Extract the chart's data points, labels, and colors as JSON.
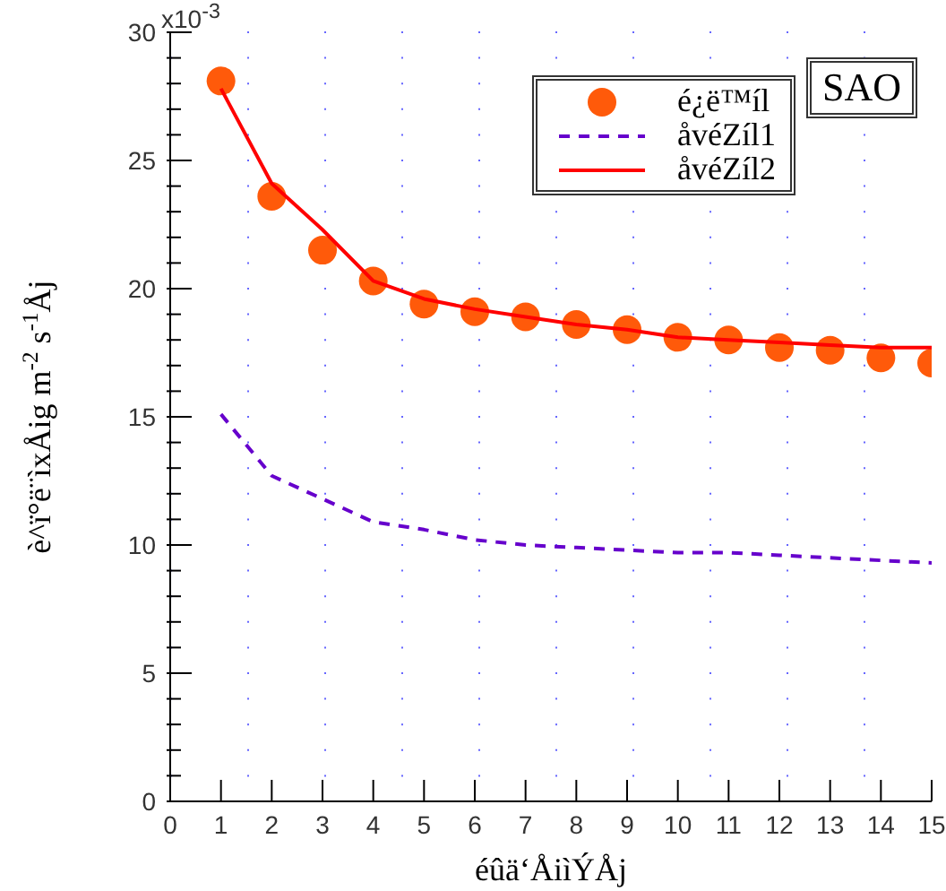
{
  "chart_data": {
    "type": "line",
    "xlabel": "éûä‘ÅiìÝÅj",
    "ylabel": "è^ï°ë¨ìxÅig m$^{-2}$ s$^{-1}$Åj",
    "annotations": [
      "x10$^{-3}$",
      "SAO"
    ],
    "x": [
      1,
      2,
      3,
      4,
      5,
      6,
      7,
      8,
      9,
      10,
      11,
      12,
      13,
      14,
      15
    ],
    "series": [
      {
        "name": "é¿ë™íl",
        "type": "scatter",
        "color": "#ff5a0a",
        "marker": "circle",
        "values": [
          28.1,
          23.6,
          21.5,
          20.3,
          19.4,
          19.1,
          18.9,
          18.6,
          18.4,
          18.1,
          18.0,
          17.7,
          17.6,
          17.3,
          17.1
        ]
      },
      {
        "name": "åvéZíl1",
        "type": "line",
        "color": "#6600cc",
        "line_style": "dashed",
        "marker": "none",
        "values": [
          15.1,
          12.7,
          11.8,
          10.9,
          10.6,
          10.2,
          10.0,
          9.9,
          9.8,
          9.7,
          9.7,
          9.6,
          9.5,
          9.4,
          9.3
        ]
      },
      {
        "name": "åvéZíl2",
        "type": "line",
        "color": "#ff0000",
        "line_style": "solid",
        "marker": "none",
        "values": [
          27.8,
          24.1,
          22.3,
          20.3,
          19.6,
          19.2,
          18.9,
          18.6,
          18.4,
          18.1,
          18.0,
          17.9,
          17.8,
          17.7,
          17.7
        ]
      }
    ],
    "xlim": [
      0,
      15
    ],
    "xticks": [
      0,
      1,
      2,
      3,
      4,
      5,
      6,
      7,
      8,
      9,
      10,
      11,
      12,
      13,
      14,
      15
    ],
    "ylim": [
      0,
      30
    ],
    "yticks": [
      0,
      {
        "value": 1,
        "label": null
      },
      {
        "value": 2,
        "label": null
      },
      {
        "value": 3,
        "label": null
      },
      {
        "value": 4,
        "label": null
      },
      5,
      {
        "value": 6,
        "label": null
      },
      {
        "value": 7,
        "label": null
      },
      {
        "value": 8,
        "label": null
      },
      {
        "value": 9,
        "label": null
      },
      10,
      {
        "value": 11,
        "label": null
      },
      {
        "value": 12,
        "label": null
      },
      {
        "value": 13,
        "label": null
      },
      {
        "value": 14,
        "label": null
      },
      15,
      {
        "value": 16,
        "label": null
      },
      {
        "value": 17,
        "label": null
      },
      {
        "value": 18,
        "label": null
      },
      {
        "value": 19,
        "label": null
      },
      20,
      {
        "value": 21,
        "label": null
      },
      {
        "value": 22,
        "label": null
      },
      {
        "value": 23,
        "label": null
      },
      {
        "value": 24,
        "label": null
      },
      25,
      {
        "value": 26,
        "label": null
      },
      {
        "value": 27,
        "label": null
      },
      {
        "value": 28,
        "label": null
      },
      {
        "value": 29,
        "label": null
      },
      30
    ],
    "grid": "y",
    "legend": "top right"
  }
}
